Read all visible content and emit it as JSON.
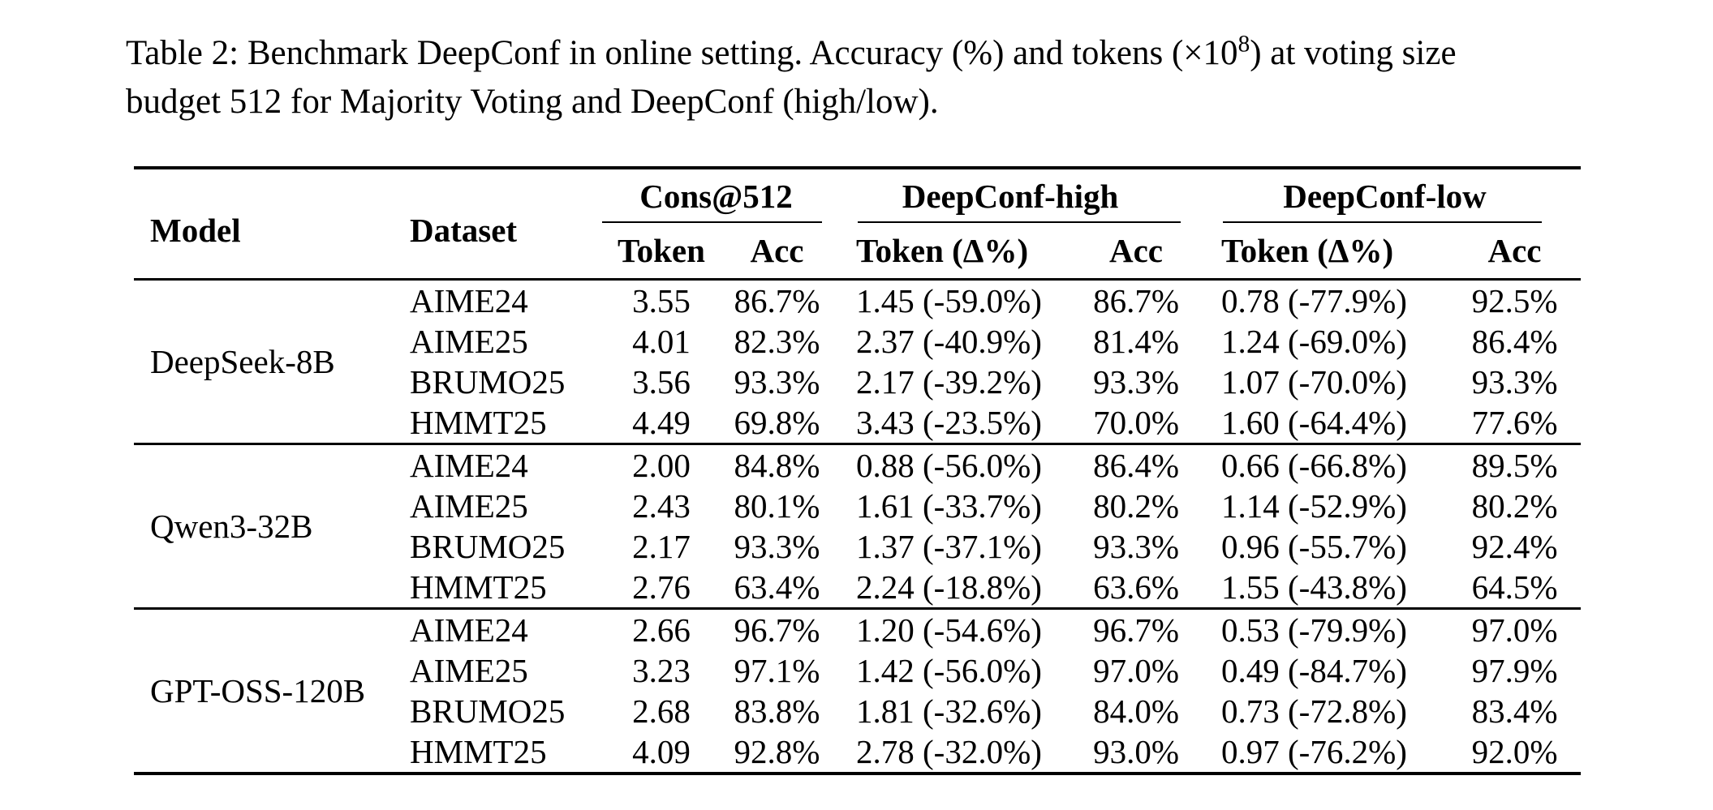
{
  "caption": {
    "part1": "Table 2: Benchmark DeepConf in online setting.  Accuracy (%) and tokens (×10",
    "sup": "8",
    "part2a": ") at voting size",
    "part2b": "budget 512 for Majority Voting and DeepConf (high/low)."
  },
  "table": {
    "headers": {
      "model": "Model",
      "dataset": "Dataset",
      "groups": [
        {
          "label": "Cons@512",
          "sub": [
            "Token",
            "Acc"
          ]
        },
        {
          "label": "DeepConf-high",
          "sub": [
            "Token (Δ%)",
            "Acc"
          ]
        },
        {
          "label": "DeepConf-low",
          "sub": [
            "Token (Δ%)",
            "Acc"
          ]
        }
      ]
    },
    "blocks": [
      {
        "model": "DeepSeek-8B",
        "rows": [
          {
            "dataset": "AIME24",
            "cons_token": "3.55",
            "cons_acc": "86.7%",
            "high_token": "1.45 (-59.0%)",
            "high_acc": "86.7%",
            "low_token": "0.78 (-77.9%)",
            "low_acc": "92.5%"
          },
          {
            "dataset": "AIME25",
            "cons_token": "4.01",
            "cons_acc": "82.3%",
            "high_token": "2.37 (-40.9%)",
            "high_acc": "81.4%",
            "low_token": "1.24 (-69.0%)",
            "low_acc": "86.4%"
          },
          {
            "dataset": "BRUMO25",
            "cons_token": "3.56",
            "cons_acc": "93.3%",
            "high_token": "2.17 (-39.2%)",
            "high_acc": "93.3%",
            "low_token": "1.07 (-70.0%)",
            "low_acc": "93.3%"
          },
          {
            "dataset": "HMMT25",
            "cons_token": "4.49",
            "cons_acc": "69.8%",
            "high_token": "3.43 (-23.5%)",
            "high_acc": "70.0%",
            "low_token": "1.60 (-64.4%)",
            "low_acc": "77.6%"
          }
        ]
      },
      {
        "model": "Qwen3-32B",
        "rows": [
          {
            "dataset": "AIME24",
            "cons_token": "2.00",
            "cons_acc": "84.8%",
            "high_token": "0.88 (-56.0%)",
            "high_acc": "86.4%",
            "low_token": "0.66 (-66.8%)",
            "low_acc": "89.5%"
          },
          {
            "dataset": "AIME25",
            "cons_token": "2.43",
            "cons_acc": "80.1%",
            "high_token": "1.61 (-33.7%)",
            "high_acc": "80.2%",
            "low_token": "1.14 (-52.9%)",
            "low_acc": "80.2%"
          },
          {
            "dataset": "BRUMO25",
            "cons_token": "2.17",
            "cons_acc": "93.3%",
            "high_token": "1.37 (-37.1%)",
            "high_acc": "93.3%",
            "low_token": "0.96 (-55.7%)",
            "low_acc": "92.4%"
          },
          {
            "dataset": "HMMT25",
            "cons_token": "2.76",
            "cons_acc": "63.4%",
            "high_token": "2.24 (-18.8%)",
            "high_acc": "63.6%",
            "low_token": "1.55 (-43.8%)",
            "low_acc": "64.5%"
          }
        ]
      },
      {
        "model": "GPT-OSS-120B",
        "rows": [
          {
            "dataset": "AIME24",
            "cons_token": "2.66",
            "cons_acc": "96.7%",
            "high_token": "1.20 (-54.6%)",
            "high_acc": "96.7%",
            "low_token": "0.53 (-79.9%)",
            "low_acc": "97.0%"
          },
          {
            "dataset": "AIME25",
            "cons_token": "3.23",
            "cons_acc": "97.1%",
            "high_token": "1.42 (-56.0%)",
            "high_acc": "97.0%",
            "low_token": "0.49 (-84.7%)",
            "low_acc": "97.9%"
          },
          {
            "dataset": "BRUMO25",
            "cons_token": "2.68",
            "cons_acc": "83.8%",
            "high_token": "1.81 (-32.6%)",
            "high_acc": "84.0%",
            "low_token": "0.73 (-72.8%)",
            "low_acc": "83.4%"
          },
          {
            "dataset": "HMMT25",
            "cons_token": "4.09",
            "cons_acc": "92.8%",
            "high_token": "2.78 (-32.0%)",
            "high_acc": "93.0%",
            "low_token": "0.97 (-76.2%)",
            "low_acc": "92.0%"
          }
        ]
      }
    ]
  }
}
